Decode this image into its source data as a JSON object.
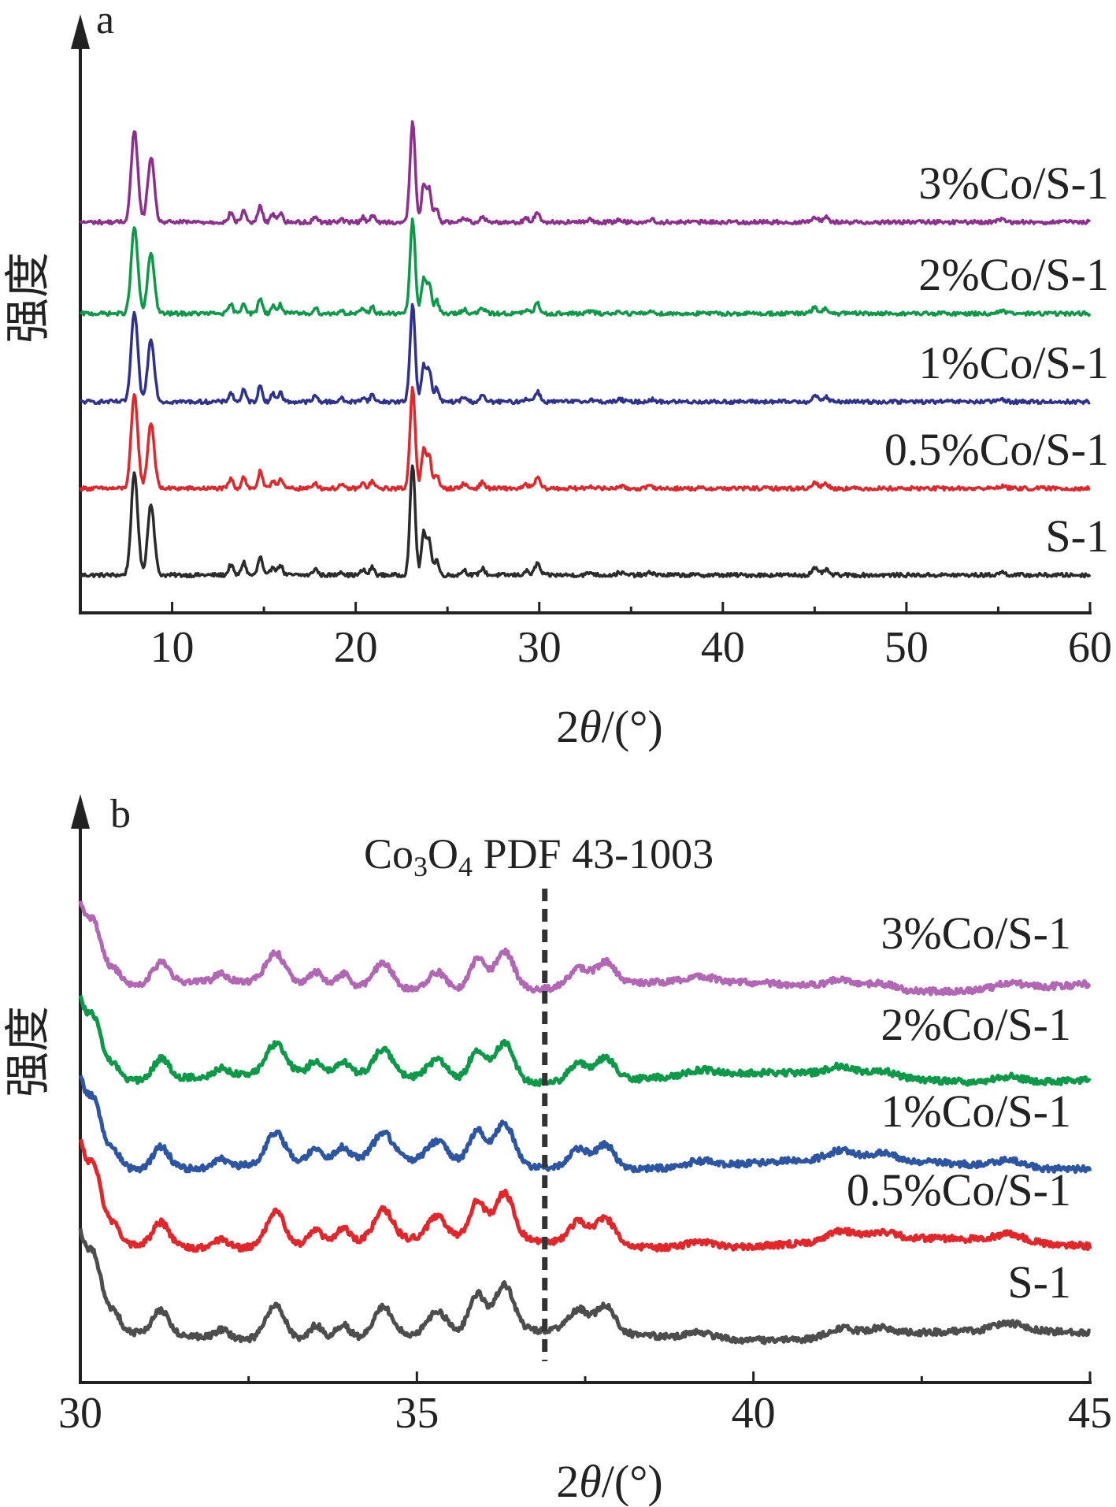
{
  "chart_data": [
    {
      "panel": "a",
      "type": "line",
      "xlabel_prefix": "2",
      "xlabel_theta": "θ",
      "xlabel_suffix": "/(°)",
      "ylabel": "强度",
      "xlim": [
        5,
        60
      ],
      "xticks": [
        10,
        20,
        30,
        40,
        50,
        60
      ],
      "yaxis_values": false,
      "grid": false,
      "legend": "inline-right",
      "peaks": [
        {
          "x": 7.95,
          "h": 0.78,
          "w": 0.18
        },
        {
          "x": 8.85,
          "h": 0.55,
          "w": 0.18
        },
        {
          "x": 13.2,
          "h": 0.08,
          "w": 0.12
        },
        {
          "x": 13.9,
          "h": 0.1,
          "w": 0.12
        },
        {
          "x": 14.8,
          "h": 0.14,
          "w": 0.12
        },
        {
          "x": 15.5,
          "h": 0.07,
          "w": 0.12
        },
        {
          "x": 15.9,
          "h": 0.08,
          "w": 0.12
        },
        {
          "x": 17.8,
          "h": 0.05,
          "w": 0.12
        },
        {
          "x": 19.2,
          "h": 0.03,
          "w": 0.12
        },
        {
          "x": 20.4,
          "h": 0.04,
          "w": 0.12
        },
        {
          "x": 20.9,
          "h": 0.06,
          "w": 0.12
        },
        {
          "x": 23.1,
          "h": 0.85,
          "w": 0.14
        },
        {
          "x": 23.7,
          "h": 0.32,
          "w": 0.12
        },
        {
          "x": 24.0,
          "h": 0.28,
          "w": 0.12
        },
        {
          "x": 24.4,
          "h": 0.12,
          "w": 0.12
        },
        {
          "x": 25.9,
          "h": 0.04,
          "w": 0.14
        },
        {
          "x": 26.9,
          "h": 0.05,
          "w": 0.14
        },
        {
          "x": 29.3,
          "h": 0.03,
          "w": 0.14
        },
        {
          "x": 29.9,
          "h": 0.09,
          "w": 0.14
        },
        {
          "x": 32.8,
          "h": 0.02,
          "w": 0.16
        },
        {
          "x": 34.4,
          "h": 0.02,
          "w": 0.16
        },
        {
          "x": 36.1,
          "h": 0.02,
          "w": 0.16
        },
        {
          "x": 45.0,
          "h": 0.05,
          "w": 0.16
        },
        {
          "x": 45.6,
          "h": 0.04,
          "w": 0.16
        },
        {
          "x": 55.2,
          "h": 0.02,
          "w": 0.2
        }
      ],
      "series": [
        {
          "name": "S-1",
          "color": "#2b2b2b",
          "scale": 1.0
        },
        {
          "name": "0.5%Co/S-1",
          "color": "#e3262a",
          "scale": 0.92
        },
        {
          "name": "1%Co/S-1",
          "color": "#2e3190",
          "scale": 0.88
        },
        {
          "name": "2%Co/S-1",
          "color": "#0c9a48",
          "scale": 0.85
        },
        {
          "name": "3%Co/S-1",
          "color": "#8e2e8f",
          "scale": 0.9
        }
      ]
    },
    {
      "panel": "b",
      "type": "line",
      "xlabel_prefix": "2",
      "xlabel_theta": "θ",
      "xlabel_suffix": "/(°)",
      "ylabel": "强度",
      "xlim": [
        30,
        45
      ],
      "xticks": [
        30,
        35,
        40,
        45
      ],
      "yaxis_values": false,
      "grid": false,
      "legend": "inline-right",
      "annotation": {
        "x": 36.9,
        "label_main": "Co",
        "sub1": "3",
        "label_mid": "O",
        "sub2": "4",
        "label_rest": " PDF 43-1003",
        "style": "dashed"
      },
      "peaks": [
        {
          "x": 29.9,
          "h": 1.0,
          "w": 0.12
        },
        {
          "x": 30.2,
          "h": 0.6,
          "w": 0.12
        },
        {
          "x": 30.5,
          "h": 0.15,
          "w": 0.1
        },
        {
          "x": 31.2,
          "h": 0.2,
          "w": 0.12
        },
        {
          "x": 32.1,
          "h": 0.07,
          "w": 0.1
        },
        {
          "x": 32.9,
          "h": 0.28,
          "w": 0.14
        },
        {
          "x": 33.5,
          "h": 0.12,
          "w": 0.1
        },
        {
          "x": 33.9,
          "h": 0.12,
          "w": 0.1
        },
        {
          "x": 34.5,
          "h": 0.25,
          "w": 0.14
        },
        {
          "x": 35.3,
          "h": 0.18,
          "w": 0.14
        },
        {
          "x": 35.9,
          "h": 0.3,
          "w": 0.12
        },
        {
          "x": 36.3,
          "h": 0.38,
          "w": 0.14
        },
        {
          "x": 37.4,
          "h": 0.18,
          "w": 0.14
        },
        {
          "x": 37.8,
          "h": 0.22,
          "w": 0.14
        },
        {
          "x": 39.2,
          "h": 0.05,
          "w": 0.2
        },
        {
          "x": 41.3,
          "h": 0.08,
          "w": 0.2
        },
        {
          "x": 41.9,
          "h": 0.06,
          "w": 0.2
        },
        {
          "x": 43.8,
          "h": 0.06,
          "w": 0.2
        }
      ],
      "series": [
        {
          "name": "S-1",
          "color": "#4d4d4d",
          "scale": 1.0
        },
        {
          "name": "0.5%Co/S-1",
          "color": "#e3262a",
          "scale": 1.0
        },
        {
          "name": "1%Co/S-1",
          "color": "#2c56a4",
          "scale": 0.9
        },
        {
          "name": "2%Co/S-1",
          "color": "#0c9a48",
          "scale": 0.85
        },
        {
          "name": "3%Co/S-1",
          "color": "#b267b5",
          "scale": 0.85
        }
      ]
    }
  ]
}
